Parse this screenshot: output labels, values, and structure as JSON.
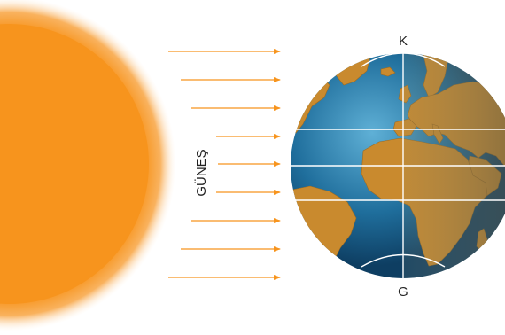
{
  "sun": {
    "label": "GÜNEŞ",
    "color": "#F7941D"
  },
  "earth": {
    "north_label": "K",
    "south_label": "G",
    "ocean_color": "#1F6E9C",
    "land_color": "#C98A2E"
  },
  "rays": {
    "count": 9,
    "color": "#F7941D"
  },
  "colors": {
    "grid_lines": "#FFFFFF",
    "night_side": "#5a5a4a"
  }
}
